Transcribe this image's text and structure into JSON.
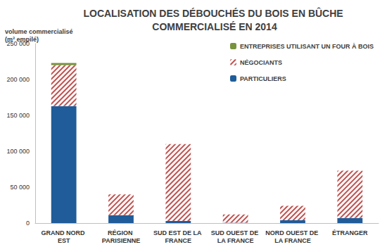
{
  "chart_data": {
    "type": "bar",
    "title": "LOCALISATION DES DÉBOUCHÉS DU BOIS EN BÛCHE COMMERCIALISÉ EN 2014",
    "ylabel": "volume commercialisé (m³ empilé)",
    "categories": [
      "GRAND NORD EST",
      "RÉGION PARISIENNE",
      "SUD EST DE LA FRANCE",
      "SUD OUEST DE LA FRANCE",
      "NORD OUEST DE LA FRANCE",
      "ÉTRANGER"
    ],
    "series": [
      {
        "name": "PARTICULIERS",
        "color": "#1f5c99",
        "values": [
          163000,
          11000,
          3000,
          500,
          4000,
          7000
        ]
      },
      {
        "name": "NÉGOCIANTS",
        "color": "#c0504d",
        "values": [
          57000,
          29000,
          107000,
          11500,
          20000,
          66000
        ]
      },
      {
        "name": "ENTREPRISES UTILISANT UN FOUR À BOIS",
        "color": "#77933c",
        "values": [
          3000,
          0,
          0,
          0,
          0,
          0
        ]
      }
    ],
    "stacked": true,
    "ylim": [
      0,
      250000
    ],
    "yticks": [
      0,
      {
        "value": 50000,
        "label": "50 000"
      },
      {
        "value": 100000,
        "label": "100 000"
      },
      {
        "value": 150000,
        "label": "150 000"
      },
      {
        "value": 200000,
        "label": "200 000"
      },
      {
        "value": 250000,
        "label": "250 000"
      }
    ],
    "grid": false,
    "legend": "upper right"
  }
}
